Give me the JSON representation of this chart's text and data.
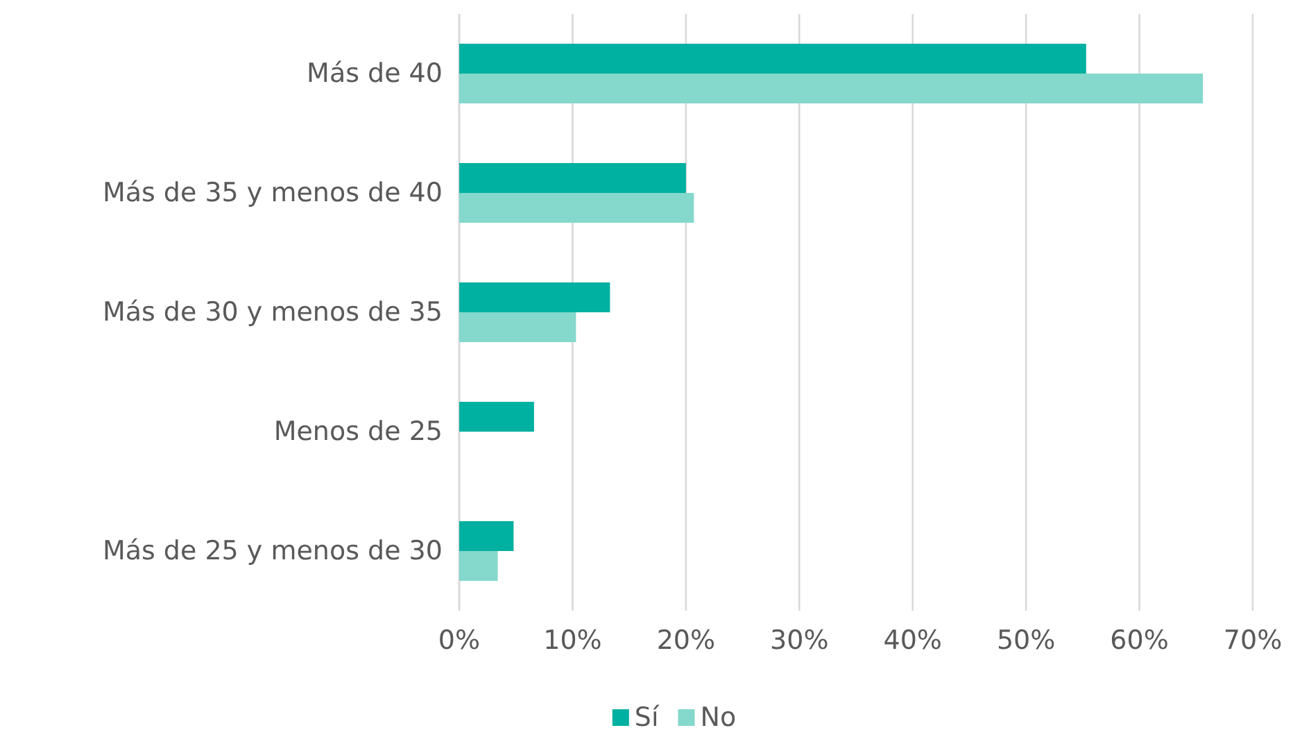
{
  "chart_data": {
    "type": "bar",
    "orientation": "horizontal",
    "categories": [
      "Más de 40",
      "Más de 35 y menos de 40",
      "Más de 30 y menos de 35",
      "Menos de 25",
      "Más de 25 y menos de 30"
    ],
    "series": [
      {
        "name": "Sí",
        "color": "#00b0a0",
        "values": [
          55.3,
          20,
          13.3,
          6.6,
          4.8
        ]
      },
      {
        "name": "No",
        "color": "#84d8cc",
        "values": [
          65.6,
          20.7,
          10.3,
          0,
          3.4
        ]
      }
    ],
    "xlim": [
      0,
      70
    ],
    "xticks": [
      {
        "value": 0,
        "label": "0%"
      },
      {
        "value": 10,
        "label": "10%"
      },
      {
        "value": 20,
        "label": "20%"
      },
      {
        "value": 30,
        "label": "30%"
      },
      {
        "value": 40,
        "label": "40%"
      },
      {
        "value": 50,
        "label": "50%"
      },
      {
        "value": 60,
        "label": "60%"
      },
      {
        "value": 70,
        "label": "70%"
      }
    ],
    "grid": "x",
    "legend": "bottom"
  }
}
